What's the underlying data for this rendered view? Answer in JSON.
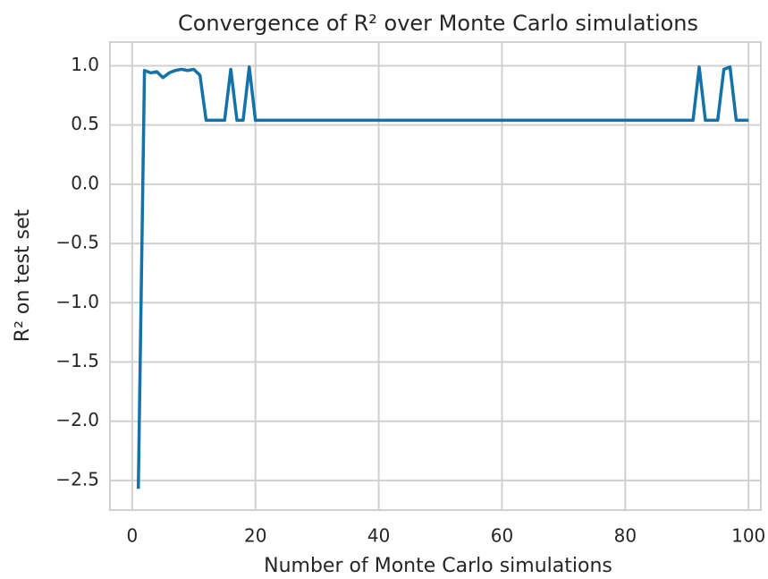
{
  "chart_data": {
    "type": "line",
    "title": "Convergence of R² over Monte Carlo simulations",
    "x_label": "Number of Monte Carlo simulations",
    "y_label": "R² on test set",
    "x": [
      1,
      2,
      3,
      4,
      5,
      6,
      7,
      8,
      9,
      10,
      11,
      12,
      13,
      14,
      15,
      16,
      17,
      18,
      19,
      20,
      21,
      22,
      23,
      24,
      25,
      26,
      27,
      28,
      29,
      30,
      31,
      32,
      33,
      34,
      35,
      36,
      37,
      38,
      39,
      40,
      41,
      42,
      43,
      44,
      45,
      46,
      47,
      48,
      49,
      50,
      51,
      52,
      53,
      54,
      55,
      56,
      57,
      58,
      59,
      60,
      61,
      62,
      63,
      64,
      65,
      66,
      67,
      68,
      69,
      70,
      71,
      72,
      73,
      74,
      75,
      76,
      77,
      78,
      79,
      80,
      81,
      82,
      83,
      84,
      85,
      86,
      87,
      88,
      89,
      90,
      91,
      92,
      93,
      94,
      95,
      96,
      97,
      98,
      99,
      100
    ],
    "series": [
      {
        "color": "#1471a9",
        "values": [
          -2.57,
          0.96,
          0.94,
          0.95,
          0.9,
          0.94,
          0.96,
          0.97,
          0.96,
          0.97,
          0.92,
          0.54,
          0.54,
          0.54,
          0.54,
          0.97,
          0.54,
          0.54,
          0.99,
          0.54,
          0.54,
          0.54,
          0.54,
          0.54,
          0.54,
          0.54,
          0.54,
          0.54,
          0.54,
          0.54,
          0.54,
          0.54,
          0.54,
          0.54,
          0.54,
          0.54,
          0.54,
          0.54,
          0.54,
          0.54,
          0.54,
          0.54,
          0.54,
          0.54,
          0.54,
          0.54,
          0.54,
          0.54,
          0.54,
          0.54,
          0.54,
          0.54,
          0.54,
          0.54,
          0.54,
          0.54,
          0.54,
          0.54,
          0.54,
          0.54,
          0.54,
          0.54,
          0.54,
          0.54,
          0.54,
          0.54,
          0.54,
          0.54,
          0.54,
          0.54,
          0.54,
          0.54,
          0.54,
          0.54,
          0.54,
          0.54,
          0.54,
          0.54,
          0.54,
          0.54,
          0.54,
          0.54,
          0.54,
          0.54,
          0.54,
          0.54,
          0.54,
          0.54,
          0.54,
          0.54,
          0.54,
          0.99,
          0.54,
          0.54,
          0.54,
          0.97,
          0.99,
          0.54,
          0.54,
          0.54
        ]
      }
    ],
    "xlim": [
      -3.6,
      102
    ],
    "ylim": [
      -2.75,
      1.2
    ],
    "xticks": [
      0,
      20,
      40,
      60,
      80,
      100
    ],
    "yticks": [
      {
        "value": -2.5,
        "label": "−2.5"
      },
      {
        "value": -2.0,
        "label": "−2.0"
      },
      {
        "value": -1.5,
        "label": "−1.5"
      },
      {
        "value": -1.0,
        "label": "−1.0"
      },
      {
        "value": -0.5,
        "label": "−0.5"
      },
      {
        "value": 0,
        "label": "0.0"
      },
      0.5,
      {
        "value": 1.0,
        "label": "1.0"
      }
    ],
    "grid": true
  }
}
